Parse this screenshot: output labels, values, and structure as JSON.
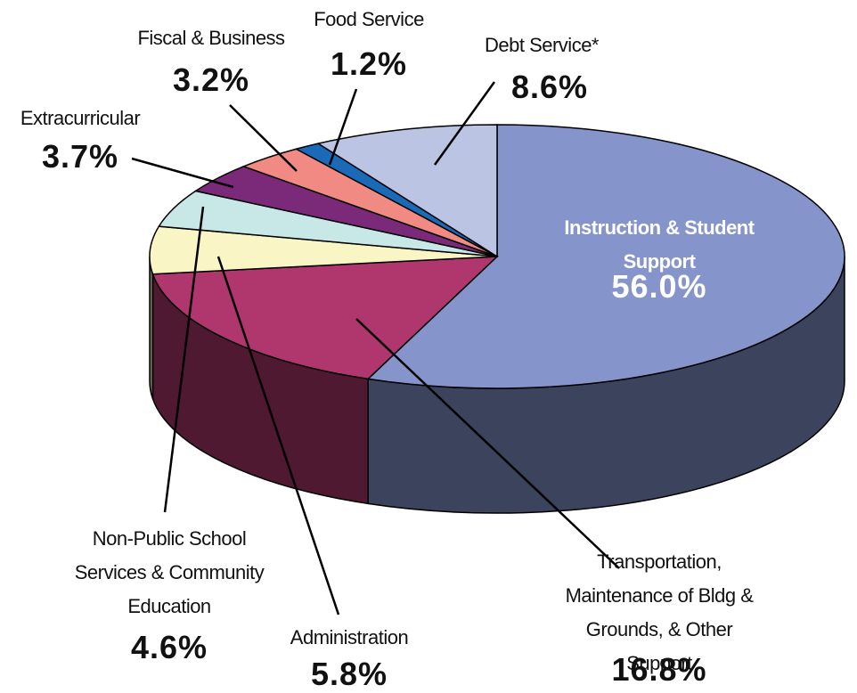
{
  "chart_data": {
    "type": "pie",
    "categories": [
      "Instruction & Student Support",
      "Transportation, Maintenance of Bldg &\nGrounds, & Other Support",
      "Administration",
      "Non-Public School\nServices & Community\nEducation",
      "Extracurricular",
      "Fiscal & Business",
      "Food Service",
      "Debt Service*"
    ],
    "values": [
      56.0,
      16.8,
      5.8,
      4.6,
      3.7,
      3.2,
      1.2,
      8.6
    ],
    "value_labels": [
      "56.0%",
      "16.8%",
      "5.8%",
      "4.6%",
      "3.7%",
      "3.2%",
      "1.2%",
      "8.6%"
    ],
    "colors": [
      "#8595cc",
      "#b0376d",
      "#faf5c4",
      "#c8e8e8",
      "#7a2a78",
      "#f08a82",
      "#1a6ab8",
      "#bcc4e4"
    ]
  }
}
